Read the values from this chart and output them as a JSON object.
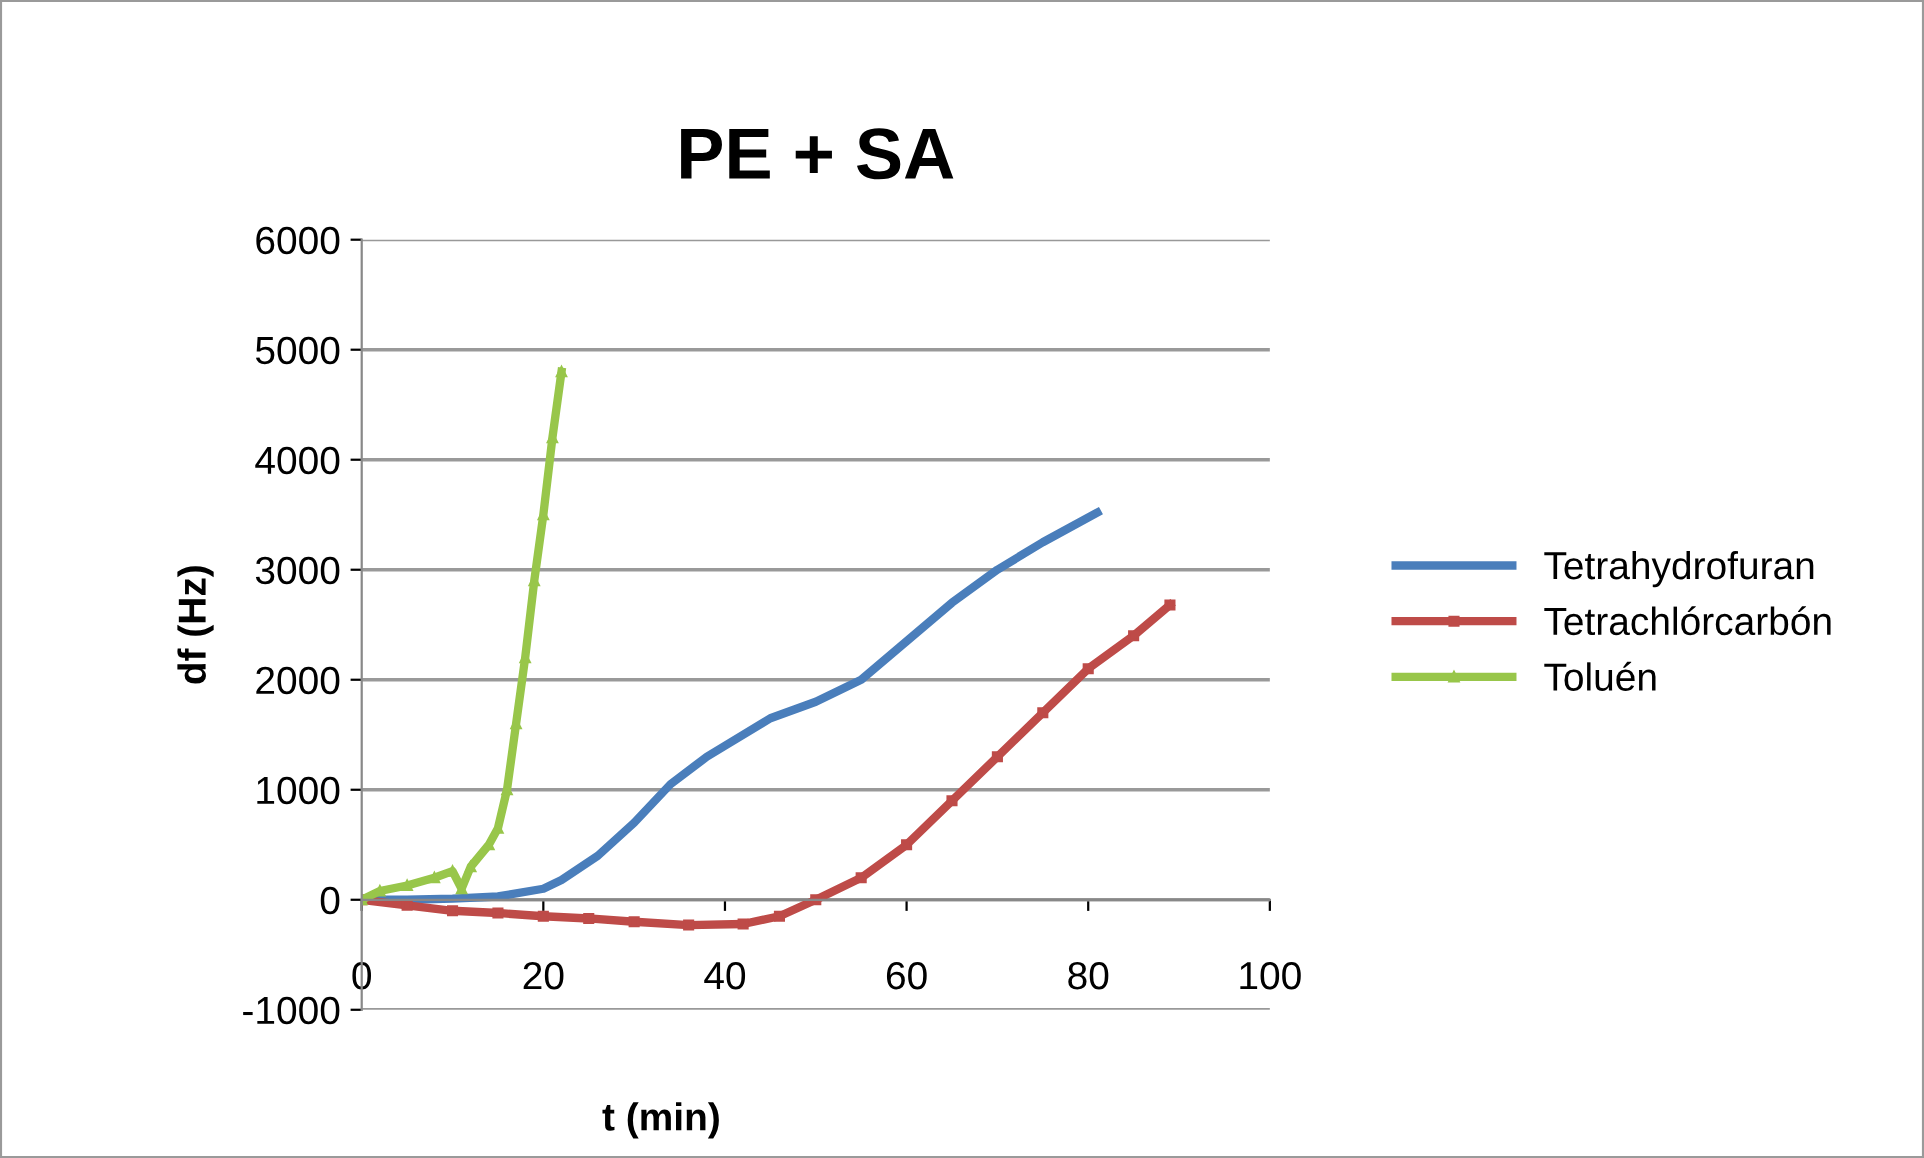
{
  "chart_data": {
    "type": "line",
    "title": "PE + SA",
    "xlabel": "t (min)",
    "ylabel": "df (Hz)",
    "xlim": [
      0,
      100
    ],
    "xticks": [
      0,
      20,
      40,
      60,
      80,
      100
    ],
    "ylim": [
      -1000,
      6000
    ],
    "yticks": [
      -1000,
      0,
      1000,
      2000,
      3000,
      4000,
      5000,
      6000
    ],
    "grid": "y",
    "legend": "right",
    "line_style": "solid",
    "series": [
      {
        "name": "Tetrahydrofuran",
        "color": "#4a7ebb",
        "marker": "none",
        "x": [
          0,
          5,
          10,
          15,
          20,
          22,
          26,
          30,
          34,
          38,
          40,
          45,
          50,
          55,
          60,
          65,
          70,
          75,
          81
        ],
        "values": [
          0,
          0,
          10,
          30,
          100,
          180,
          400,
          700,
          1050,
          1300,
          1400,
          1650,
          1800,
          2000,
          2350,
          2700,
          3000,
          3250,
          3520
        ]
      },
      {
        "name": "Tetrachlórcarbón",
        "color": "#be4b48",
        "marker": "square",
        "x": [
          0,
          5,
          10,
          15,
          20,
          25,
          30,
          36,
          42,
          46,
          50,
          55,
          60,
          65,
          70,
          75,
          80,
          85,
          89
        ],
        "values": [
          0,
          -50,
          -100,
          -120,
          -150,
          -170,
          -200,
          -230,
          -220,
          -150,
          0,
          200,
          500,
          900,
          1300,
          1700,
          2100,
          2400,
          2680
        ]
      },
      {
        "name": "Toluén",
        "color": "#98c64a",
        "marker": "triangle",
        "x": [
          0,
          2,
          5,
          8,
          10,
          11,
          12,
          14,
          15,
          16,
          17,
          18,
          19,
          20,
          21,
          22
        ],
        "values": [
          0,
          80,
          130,
          200,
          260,
          100,
          300,
          500,
          650,
          1000,
          1600,
          2200,
          2900,
          3500,
          4200,
          4800
        ]
      }
    ]
  }
}
